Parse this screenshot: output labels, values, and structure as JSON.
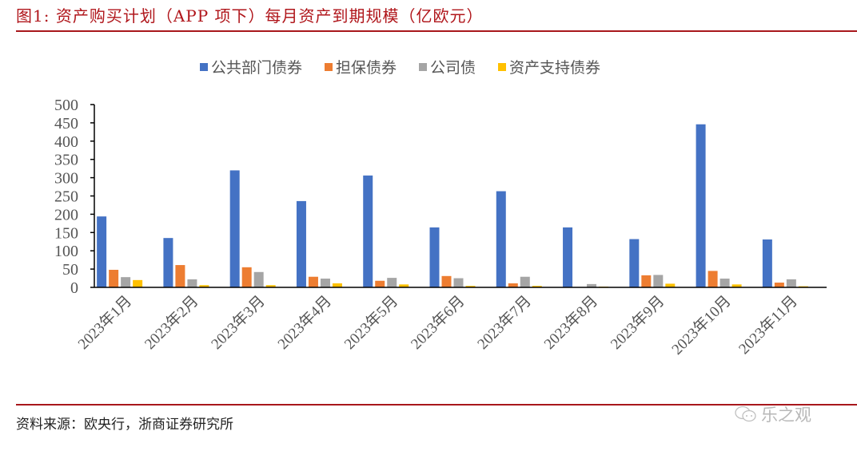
{
  "figure": {
    "title": "图1:  资产购买计划（APP 项下）每月资产到期规模（亿欧元）",
    "source": "资料来源：欧央行，浙商证券研究所",
    "watermark": "乐之观",
    "accent_color": "#a8171c"
  },
  "legend": {
    "items": [
      {
        "label": "公共部门债券",
        "color": "#4472c4"
      },
      {
        "label": "担保债券",
        "color": "#ed7d31"
      },
      {
        "label": "公司债",
        "color": "#a5a5a5"
      },
      {
        "label": "资产支持债券",
        "color": "#ffc000"
      }
    ]
  },
  "chart_data": {
    "type": "bar",
    "title": "资产购买计划（APP 项下）每月资产到期规模（亿欧元）",
    "xlabel": "",
    "ylabel": "",
    "ylim": [
      0,
      500
    ],
    "yticks": [
      0,
      50,
      100,
      150,
      200,
      250,
      300,
      350,
      400,
      450,
      500
    ],
    "grid": false,
    "legend_position": "top",
    "categories": [
      "2023年1月",
      "2023年2月",
      "2023年3月",
      "2023年4月",
      "2023年5月",
      "2023年6月",
      "2023年7月",
      "2023年8月",
      "2023年9月",
      "2023年10月",
      "2023年11月"
    ],
    "series": [
      {
        "name": "公共部门债券",
        "color": "#4472c4",
        "values": [
          194,
          135,
          320,
          236,
          306,
          164,
          263,
          164,
          132,
          446,
          131
        ]
      },
      {
        "name": "担保债券",
        "color": "#ed7d31",
        "values": [
          48,
          61,
          55,
          29,
          18,
          31,
          11,
          0,
          33,
          45,
          13
        ]
      },
      {
        "name": "公司债",
        "color": "#a5a5a5",
        "values": [
          28,
          22,
          42,
          24,
          26,
          25,
          29,
          9,
          34,
          24,
          22
        ]
      },
      {
        "name": "资产支持债券",
        "color": "#ffc000",
        "values": [
          20,
          6,
          6,
          11,
          8,
          4,
          4,
          2,
          10,
          8,
          3
        ]
      }
    ]
  }
}
